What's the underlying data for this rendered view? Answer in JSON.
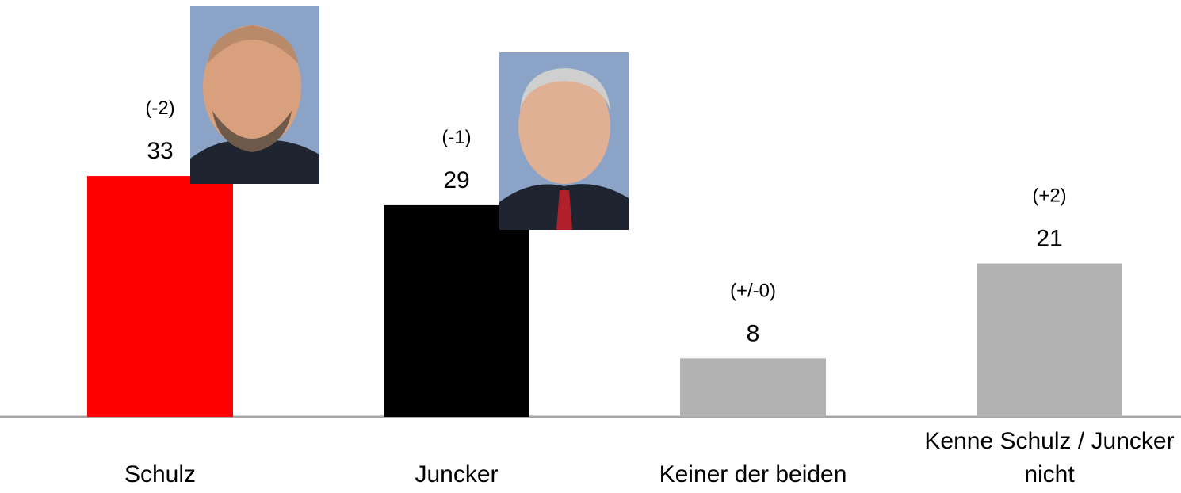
{
  "chart_data": {
    "type": "bar",
    "categories": [
      "Schulz",
      "Juncker",
      "Keiner der beiden",
      "Kenne Schulz / Juncker nicht"
    ],
    "values": [
      33,
      29,
      8,
      21
    ],
    "change_labels": [
      "(-2)",
      "(-1)",
      "(+/-0)",
      "(+2)"
    ],
    "colors": [
      "#ff0000",
      "#000000",
      "#b2b2b2",
      "#b2b2b2"
    ]
  }
}
